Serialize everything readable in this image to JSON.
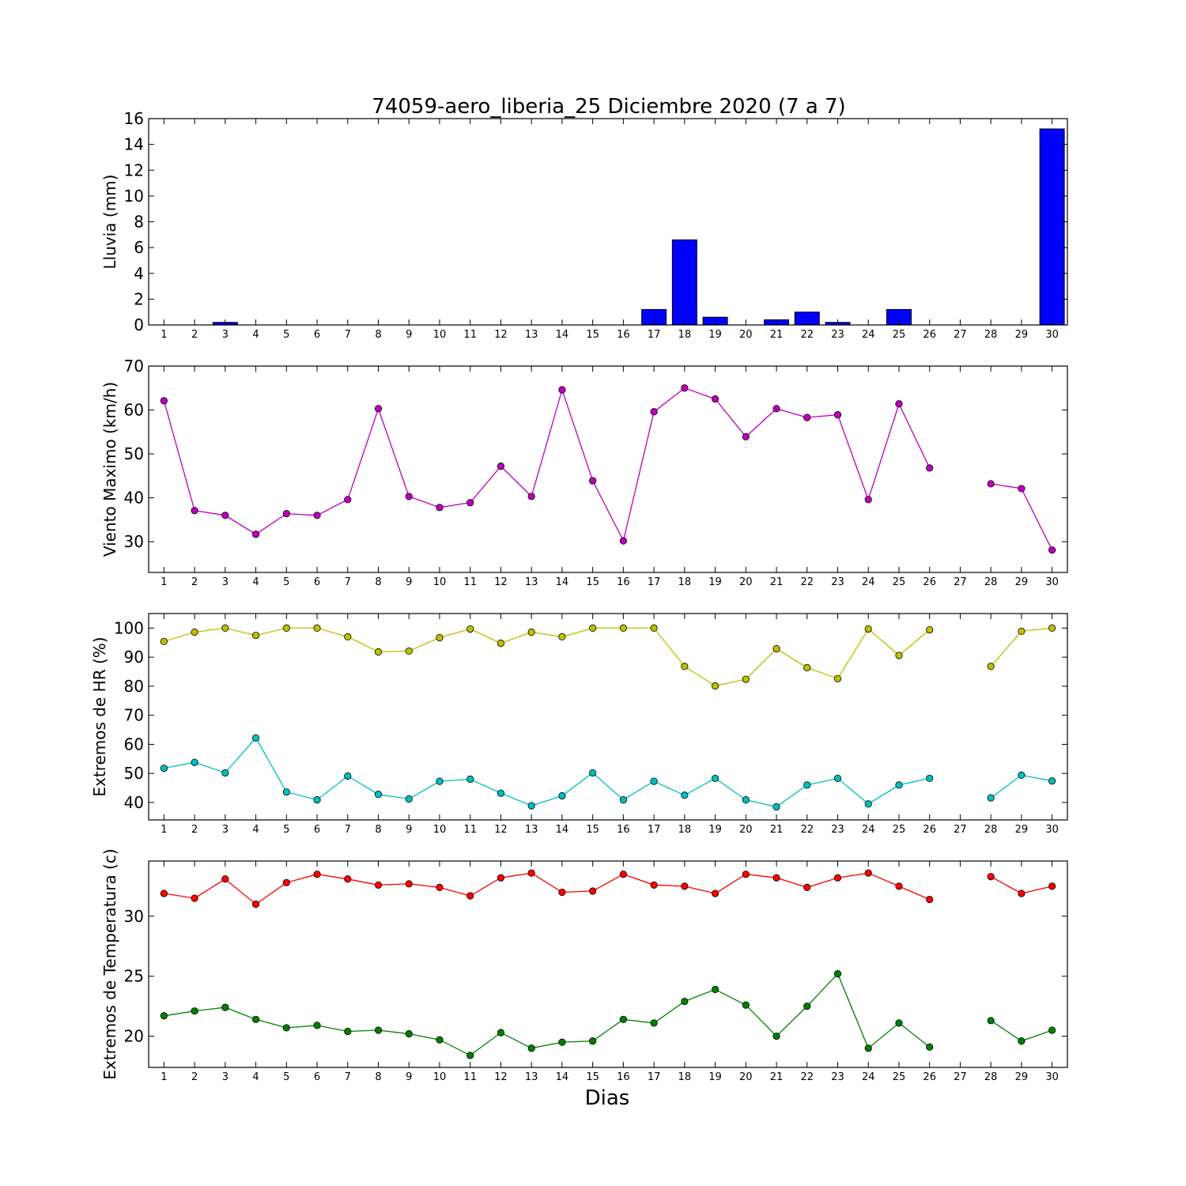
{
  "title": "74059-aero_liberia_25 Diciembre 2020  (7 a 7)",
  "xlabel": "Dias",
  "colors": {
    "rain": "#0000ff",
    "wind": "#bf00bf",
    "hr_max": "#bfbf00",
    "hr_min": "#00bfbf",
    "t_max": "#ff0000",
    "t_min": "#008000"
  },
  "chart_data": [
    {
      "type": "bar",
      "ylabel": "Lluvia (mm)",
      "ylim": [
        0,
        16
      ],
      "yticks": [
        0,
        2,
        4,
        6,
        8,
        10,
        12,
        14,
        16
      ],
      "x": [
        1,
        2,
        3,
        4,
        5,
        6,
        7,
        8,
        9,
        10,
        11,
        12,
        13,
        14,
        15,
        16,
        17,
        18,
        19,
        20,
        21,
        22,
        23,
        24,
        25,
        26,
        27,
        28,
        29,
        30
      ],
      "values": [
        0,
        0,
        0.2,
        0,
        0,
        0,
        0,
        0,
        0,
        0,
        0,
        0,
        0,
        0,
        0,
        0,
        1.2,
        6.6,
        0.6,
        0,
        0.4,
        1.0,
        0.2,
        0,
        1.2,
        0,
        0,
        0,
        0,
        15.2
      ]
    },
    {
      "type": "line",
      "ylabel": "Viento Maximo (km/h)",
      "ylim": [
        23,
        70
      ],
      "yticks": [
        30,
        40,
        50,
        60,
        70
      ],
      "x": [
        1,
        2,
        3,
        4,
        5,
        6,
        7,
        8,
        9,
        10,
        11,
        12,
        13,
        14,
        15,
        16,
        17,
        18,
        19,
        20,
        21,
        22,
        23,
        24,
        25,
        26,
        27,
        28,
        29,
        30
      ],
      "series": [
        {
          "values": [
            62.1,
            37.1,
            36.0,
            31.7,
            36.4,
            36.0,
            39.6,
            60.3,
            40.3,
            37.8,
            38.9,
            47.2,
            40.3,
            64.6,
            43.9,
            30.2,
            59.6,
            65.0,
            62.5,
            53.9,
            60.3,
            58.3,
            58.9,
            39.6,
            61.4,
            46.8,
            null,
            43.2,
            42.1,
            28.1
          ]
        }
      ]
    },
    {
      "type": "line",
      "ylabel": "Extremos de HR (%)",
      "ylim": [
        34,
        105
      ],
      "yticks": [
        40,
        50,
        60,
        70,
        80,
        90,
        100
      ],
      "x": [
        1,
        2,
        3,
        4,
        5,
        6,
        7,
        8,
        9,
        10,
        11,
        12,
        13,
        14,
        15,
        16,
        17,
        18,
        19,
        20,
        21,
        22,
        23,
        24,
        25,
        26,
        27,
        28,
        29,
        30
      ],
      "series": [
        {
          "values": [
            95.4,
            98.6,
            100.0,
            97.5,
            100.0,
            100.0,
            97.0,
            91.8,
            92.1,
            96.7,
            99.7,
            94.8,
            98.6,
            97.0,
            100.0,
            100.0,
            100.0,
            86.8,
            80.1,
            82.4,
            92.9,
            86.4,
            82.6,
            99.7,
            90.6,
            99.4,
            null,
            86.8,
            98.9,
            100.0
          ]
        },
        {
          "values": [
            51.8,
            53.8,
            50.2,
            62.2,
            43.6,
            40.9,
            49.1,
            42.8,
            41.2,
            47.3,
            48.0,
            43.2,
            38.9,
            42.3,
            50.2,
            40.9,
            47.3,
            42.5,
            48.3,
            40.9,
            38.5,
            46.0,
            48.3,
            39.5,
            46.0,
            48.3,
            null,
            41.6,
            49.4,
            47.4
          ]
        }
      ]
    },
    {
      "type": "line",
      "ylabel": "Extremos de Temperatura (c)",
      "ylim": [
        17.4,
        34.6
      ],
      "yticks": [
        20,
        25,
        30
      ],
      "x": [
        1,
        2,
        3,
        4,
        5,
        6,
        7,
        8,
        9,
        10,
        11,
        12,
        13,
        14,
        15,
        16,
        17,
        18,
        19,
        20,
        21,
        22,
        23,
        24,
        25,
        26,
        27,
        28,
        29,
        30
      ],
      "series": [
        {
          "values": [
            31.9,
            31.5,
            33.1,
            31.0,
            32.8,
            33.5,
            33.1,
            32.6,
            32.7,
            32.4,
            31.7,
            33.2,
            33.6,
            32.0,
            32.1,
            33.5,
            32.6,
            32.5,
            31.9,
            33.5,
            33.2,
            32.4,
            33.2,
            33.6,
            32.5,
            31.4,
            null,
            33.3,
            31.9,
            32.5
          ]
        },
        {
          "values": [
            21.7,
            22.1,
            22.4,
            21.4,
            20.7,
            20.9,
            20.4,
            20.5,
            20.2,
            19.7,
            18.4,
            20.3,
            19.0,
            19.5,
            19.6,
            21.4,
            21.1,
            22.9,
            23.9,
            22.6,
            20.0,
            22.5,
            25.2,
            19.0,
            21.1,
            19.1,
            null,
            21.3,
            19.6,
            20.5
          ]
        }
      ]
    }
  ]
}
